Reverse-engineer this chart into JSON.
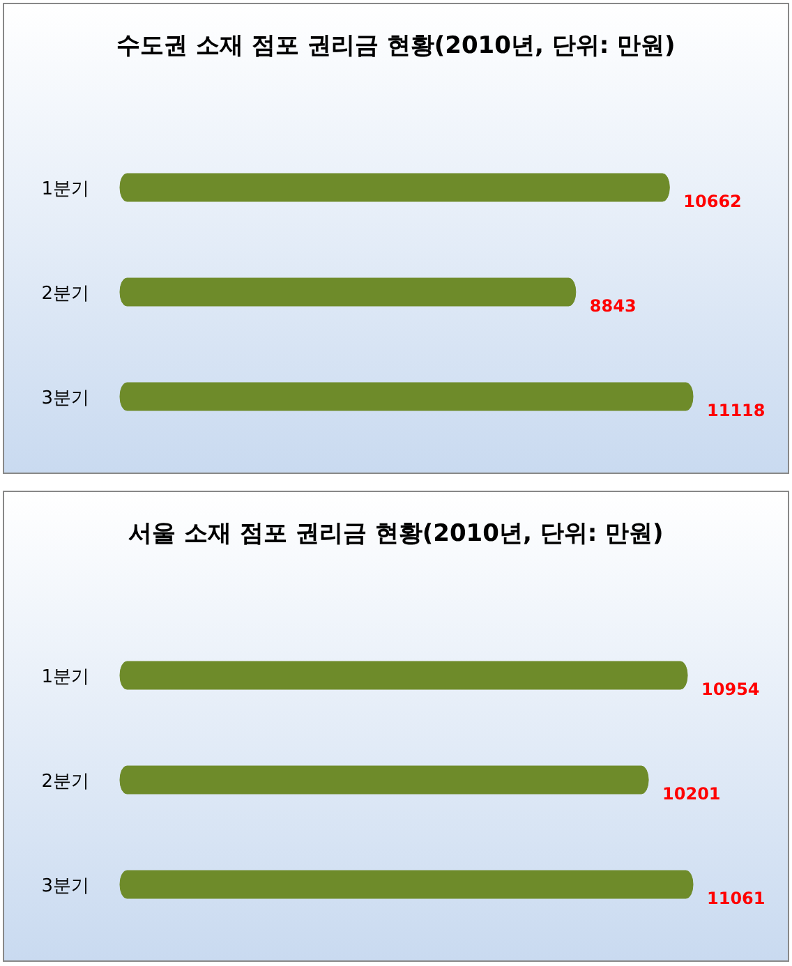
{
  "chart_data": [
    {
      "type": "bar",
      "orientation": "horizontal",
      "title": "수도권 소재 점포 권리금 현황(2010년, 단위: 만원)",
      "categories": [
        "1분기",
        "2분기",
        "3분기"
      ],
      "values": [
        10662,
        8843,
        11118
      ],
      "color": "#6e8b2a",
      "data_labels": true
    },
    {
      "type": "bar",
      "orientation": "horizontal",
      "title": "서울 소재 점포 권리금 현황(2010년, 단위: 만원)",
      "categories": [
        "1분기",
        "2분기",
        "3분기"
      ],
      "values": [
        10954,
        10201,
        11061
      ],
      "color": "#6e8b2a",
      "data_labels": true
    }
  ]
}
